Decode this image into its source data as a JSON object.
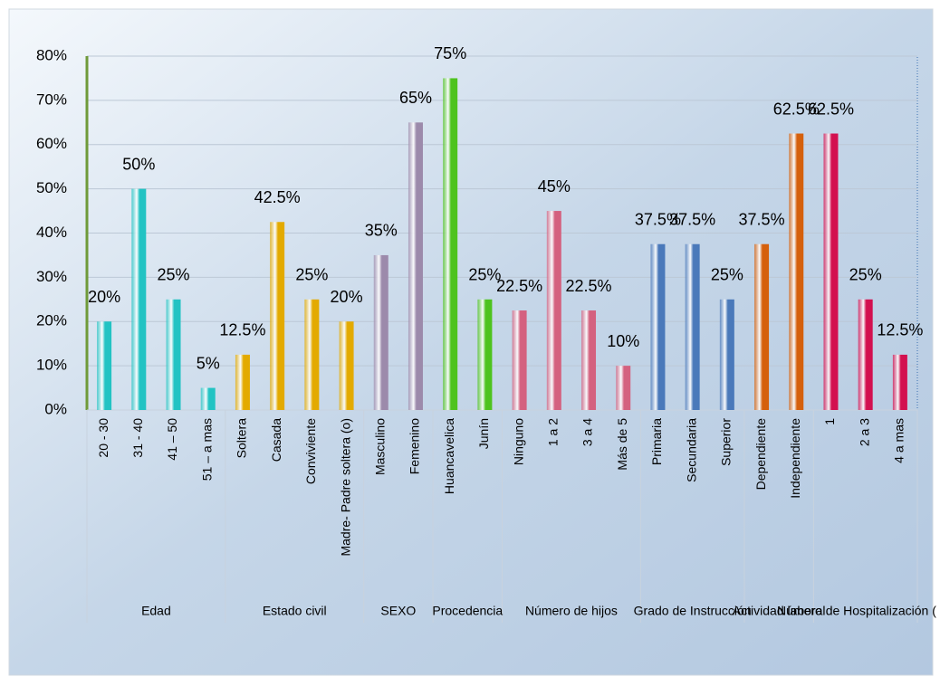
{
  "chart_data": {
    "type": "bar",
    "ylim": [
      0,
      80
    ],
    "yticks": [
      {
        "value": 0,
        "label": "0%"
      },
      {
        "value": 10,
        "label": "10%"
      },
      {
        "value": 20,
        "label": "20%"
      },
      {
        "value": 30,
        "label": "30%"
      },
      {
        "value": 40,
        "label": "40%"
      },
      {
        "value": 50,
        "label": "50%"
      },
      {
        "value": 60,
        "label": "60%"
      },
      {
        "value": 70,
        "label": "70%"
      },
      {
        "value": 80,
        "label": "80%"
      }
    ],
    "grid": true,
    "groups": [
      {
        "label": "Edad",
        "color": "#22c3c3",
        "categories": [
          "20 - 30",
          "31 - 40",
          "41 – 50",
          "51 – a mas"
        ],
        "values": [
          20,
          50,
          25,
          5
        ],
        "value_labels": [
          "20%",
          "50%",
          "25%",
          "5%"
        ]
      },
      {
        "label": "Estado civil",
        "color": "#e3aa00",
        "categories": [
          "Soltera",
          "Casada",
          "Conviviente",
          "Madre- Padre soltera (o)"
        ],
        "values": [
          12.5,
          42.5,
          25,
          20
        ],
        "value_labels": [
          "12.5%",
          "42.5%",
          "25%",
          "20%"
        ]
      },
      {
        "label": "SEXO",
        "color": "#9c8aab",
        "categories": [
          "Masculino",
          "Femenino"
        ],
        "values": [
          35,
          65
        ],
        "value_labels": [
          "35%",
          "65%"
        ]
      },
      {
        "label": "Procedencia",
        "color": "#4ec31e",
        "categories": [
          "Huancavelica",
          "Junín"
        ],
        "values": [
          75,
          25
        ],
        "value_labels": [
          "75%",
          "25%"
        ]
      },
      {
        "label": "Número de hijos",
        "color": "#d4617f",
        "categories": [
          "Ninguno",
          "1 a 2",
          "3 a 4",
          "Más de 5"
        ],
        "values": [
          22.5,
          45,
          22.5,
          10
        ],
        "value_labels": [
          "22.5%",
          "45%",
          "22.5%",
          "10%"
        ]
      },
      {
        "label": "Grado de Instrucción",
        "color": "#4a79ba",
        "categories": [
          "Primaria",
          "Secundaria",
          "Superior"
        ],
        "values": [
          37.5,
          37.5,
          25
        ],
        "value_labels": [
          "37.5%",
          "37.5%",
          "25%"
        ]
      },
      {
        "label": "Actividad laboral",
        "color": "#d5600c",
        "categories": [
          "Dependiente",
          "Independiente"
        ],
        "values": [
          37.5,
          62.5
        ],
        "value_labels": [
          "37.5%",
          "62.5%"
        ]
      },
      {
        "label": "Número de Hospitalización ( qu",
        "color": "#d3104f",
        "categories": [
          "1",
          "2 a 3",
          "4 a mas"
        ],
        "values": [
          62.5,
          25,
          12.5
        ],
        "value_labels": [
          "62.5%",
          "25%",
          "12.5%"
        ]
      }
    ]
  }
}
